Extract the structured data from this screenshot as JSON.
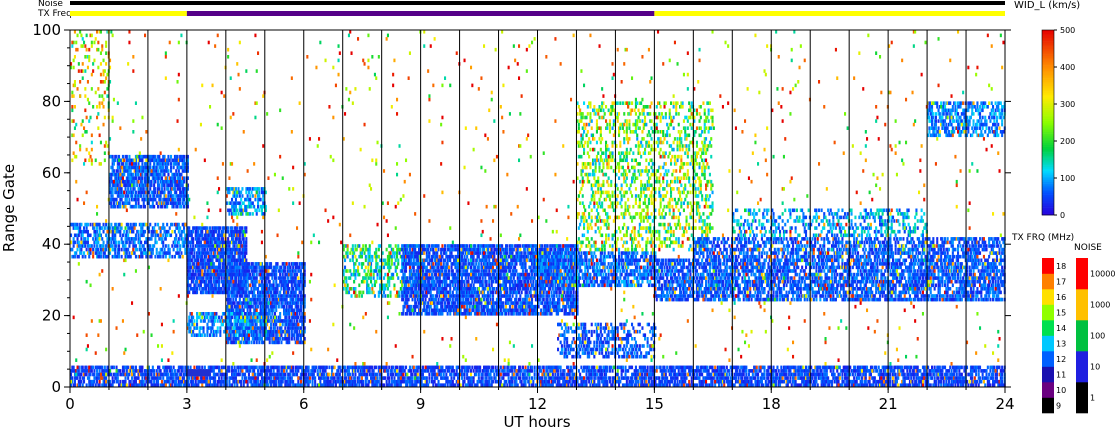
{
  "header": {
    "noise_label": "Noise",
    "txfreq_label": "TX Freq"
  },
  "chart_data": {
    "type": "heatmap",
    "xlabel": "UT hours",
    "ylabel": "Range Gate",
    "xlim": [
      0,
      24
    ],
    "ylim": [
      0,
      100
    ],
    "xticks": [
      "0",
      "3",
      "6",
      "9",
      "12",
      "15",
      "18",
      "21",
      "24"
    ],
    "yticks": [
      "0",
      "20",
      "40",
      "60",
      "80",
      "100"
    ],
    "vertical_gridlines_hours": [
      1,
      2,
      3,
      4,
      5,
      6,
      7,
      8,
      9,
      10,
      11,
      12,
      13,
      14,
      15,
      16,
      17,
      18,
      19,
      20,
      21,
      22,
      23
    ],
    "tx_freq_bar": [
      {
        "from": 0,
        "to": 3,
        "color": "#ffff00"
      },
      {
        "from": 3,
        "to": 15,
        "color": "#550088"
      },
      {
        "from": 15,
        "to": 24,
        "color": "#ffff00"
      }
    ],
    "noise_bar": [
      {
        "from": 0,
        "to": 24,
        "color": "#000000"
      }
    ],
    "main_colorbar": {
      "label": "WID_L (km/s)",
      "ticks": [
        "0",
        "100",
        "200",
        "300",
        "400",
        "500"
      ],
      "range": [
        0,
        500
      ]
    },
    "txfreq_colorbar": {
      "label": "TX FRQ (MHz)",
      "ticks": [
        "9",
        "10",
        "11",
        "12",
        "13",
        "14",
        "15",
        "16",
        "17",
        "18"
      ],
      "colors": [
        "#000000",
        "#6a0080",
        "#1a10b0",
        "#0060ff",
        "#00c8ff",
        "#00e050",
        "#90ff00",
        "#ffe000",
        "#ff8000",
        "#ff0000"
      ]
    },
    "noise_colorbar": {
      "label": "NOISE",
      "ticks": [
        "1",
        "10",
        "100",
        "1000",
        "10000"
      ],
      "colors": [
        "#000000",
        "#2020e0",
        "#00c040",
        "#ffc000",
        "#ff0000"
      ]
    },
    "scatter_regions": [
      {
        "t0": 1.0,
        "t1": 3.0,
        "g0": 50,
        "g1": 65,
        "level": 60,
        "density": 0.75
      },
      {
        "t0": 0.0,
        "t1": 3.0,
        "g0": 36,
        "g1": 46,
        "level": 70,
        "density": 0.55
      },
      {
        "t0": 0.0,
        "t1": 1.0,
        "g0": 62,
        "g1": 100,
        "level": 300,
        "density": 0.12
      },
      {
        "t0": 3.0,
        "t1": 4.5,
        "g0": 26,
        "g1": 45,
        "level": 50,
        "density": 0.8
      },
      {
        "t0": 4.0,
        "t1": 6.0,
        "g0": 12,
        "g1": 35,
        "level": 55,
        "density": 0.75
      },
      {
        "t0": 3.0,
        "t1": 5.0,
        "g0": 14,
        "g1": 21,
        "level": 80,
        "density": 0.5
      },
      {
        "t0": 4.0,
        "t1": 5.0,
        "g0": 48,
        "g1": 56,
        "level": 90,
        "density": 0.5
      },
      {
        "t0": 7.0,
        "t1": 9.0,
        "g0": 25,
        "g1": 40,
        "level": 150,
        "density": 0.35
      },
      {
        "t0": 8.5,
        "t1": 13.0,
        "g0": 20,
        "g1": 40,
        "level": 55,
        "density": 0.75
      },
      {
        "t0": 12.0,
        "t1": 15.0,
        "g0": 28,
        "g1": 38,
        "level": 70,
        "density": 0.6
      },
      {
        "t0": 12.5,
        "t1": 15.0,
        "g0": 8,
        "g1": 18,
        "level": 60,
        "density": 0.4
      },
      {
        "t0": 13.0,
        "t1": 16.5,
        "g0": 38,
        "g1": 80,
        "level": 220,
        "density": 0.3
      },
      {
        "t0": 15.0,
        "t1": 24.0,
        "g0": 24,
        "g1": 36,
        "level": 60,
        "density": 0.65
      },
      {
        "t0": 16.0,
        "t1": 24.0,
        "g0": 36,
        "g1": 42,
        "level": 60,
        "density": 0.55
      },
      {
        "t0": 17.0,
        "t1": 22.0,
        "g0": 42,
        "g1": 50,
        "level": 100,
        "density": 0.3
      },
      {
        "t0": 22.0,
        "t1": 24.0,
        "g0": 70,
        "g1": 80,
        "level": 80,
        "density": 0.55
      },
      {
        "t0": 0.0,
        "t1": 24.0,
        "g0": 0,
        "g1": 6,
        "level": 50,
        "density": 0.7
      },
      {
        "t0": 0.0,
        "t1": 24.0,
        "g0": 0,
        "g1": 100,
        "level": 350,
        "density": 0.015
      }
    ]
  }
}
